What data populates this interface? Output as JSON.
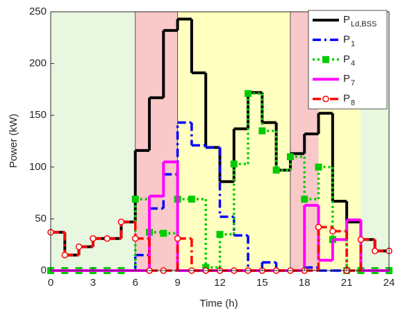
{
  "chart_data": {
    "type": "stairs",
    "xlabel": "Time (h)",
    "ylabel": "Power (kW)",
    "x": [
      0,
      1,
      2,
      3,
      4,
      5,
      6,
      7,
      8,
      9,
      10,
      11,
      12,
      13,
      14,
      15,
      16,
      17,
      18,
      19,
      20,
      21,
      22,
      23,
      24
    ],
    "xlim": [
      0,
      24
    ],
    "xticks": [
      0,
      3,
      6,
      9,
      12,
      15,
      18,
      21,
      24
    ],
    "ylim": [
      0,
      250
    ],
    "yticks": [
      0,
      50,
      100,
      150,
      200,
      250
    ],
    "regions": [
      {
        "start": 0,
        "end": 6,
        "color": "#e8f8e0"
      },
      {
        "start": 6,
        "end": 9,
        "color": "#f9c8c8"
      },
      {
        "start": 9,
        "end": 17,
        "color": "#ffffc0"
      },
      {
        "start": 17,
        "end": 19,
        "color": "#f9c8c8"
      },
      {
        "start": 19,
        "end": 22,
        "color": "#ffffc0"
      },
      {
        "start": 22,
        "end": 24,
        "color": "#e8f8e0"
      }
    ],
    "vlines": [
      6,
      9,
      17
    ],
    "legend": "northeast",
    "series": [
      {
        "name": "P",
        "name_sub": "Ld,BSS",
        "color": "#000000",
        "dash": "solid",
        "marker": "none",
        "values": [
          37,
          15,
          23,
          31,
          31,
          47,
          116,
          167,
          232,
          243,
          191,
          119,
          86,
          137,
          172,
          143,
          97,
          113,
          132,
          152,
          67,
          47,
          30,
          19,
          19
        ]
      },
      {
        "name": "P",
        "name_sub": "1",
        "color": "#0000ff",
        "dash": "dashdot",
        "marker": "none",
        "values": [
          0,
          0,
          0,
          0,
          0,
          0,
          15,
          60,
          93,
          143,
          121,
          119,
          52,
          34,
          0,
          8,
          0,
          0,
          3,
          0,
          0,
          0,
          0,
          0,
          0
        ]
      },
      {
        "name": "P",
        "name_sub": "4",
        "color": "#00cc00",
        "dash": "dotted",
        "marker": "square",
        "values": [
          0,
          0,
          0,
          0,
          0,
          0,
          69,
          37,
          36,
          69,
          69,
          3,
          35,
          103,
          171,
          135,
          97,
          110,
          69,
          100,
          30,
          0,
          0,
          0,
          0
        ]
      },
      {
        "name": "P",
        "name_sub": "7",
        "color": "#ff00ff",
        "dash": "solid",
        "marker": "none",
        "values": [
          0,
          0,
          0,
          0,
          0,
          0,
          0,
          72,
          105,
          0,
          0,
          0,
          0,
          0,
          0,
          0,
          0,
          0,
          63,
          10,
          30,
          49,
          0,
          0,
          0
        ]
      },
      {
        "name": "P",
        "name_sub": "8",
        "color": "#ff0000",
        "dash": "dashdot",
        "marker": "circle",
        "values": [
          37,
          15,
          23,
          31,
          31,
          47,
          31,
          0,
          0,
          31,
          0,
          0,
          0,
          0,
          0,
          0,
          0,
          0,
          0,
          42,
          38,
          0,
          30,
          19,
          19
        ]
      }
    ]
  }
}
